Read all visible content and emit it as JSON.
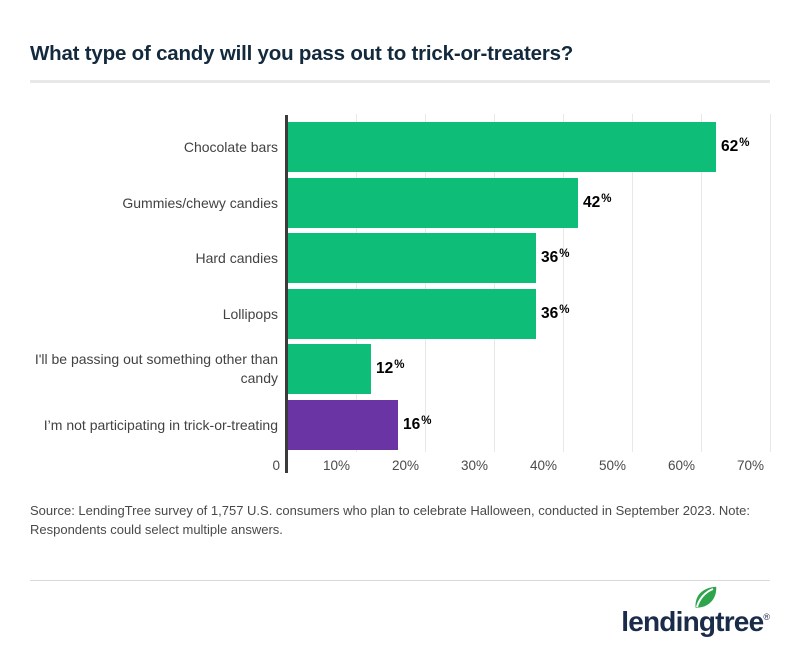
{
  "title": "What type of candy will you pass out to trick-or-treaters?",
  "source_note": "Source: LendingTree survey of 1,757 U.S. consumers who plan to celebrate Halloween, conducted in September 2023. Note: Respondents could select multiple answers.",
  "logo": {
    "text": "lendingtree",
    "registered_mark": "®"
  },
  "colors": {
    "bar_green": "#0dbd78",
    "bar_purple": "#6a34a4",
    "title_navy": "#13293d",
    "category_label_gray": "#424242",
    "tick_gray": "#4a4a4a",
    "gridline_gray": "#e8e8e8",
    "axis_line_dark": "#3b3b3b",
    "value_label_black": "#000000",
    "logo_navy": "#1b2b4a",
    "leaf_green": "#2ea44d"
  },
  "chart_data": {
    "type": "bar",
    "orientation": "horizontal",
    "title": "What type of candy will you pass out to trick-or-treaters?",
    "categories": [
      "Chocolate bars",
      "Gummies/chewy candies",
      "Hard candies",
      "Lollipops",
      "I'll be passing out something other than candy",
      "I’m not participating in trick-or-treating"
    ],
    "category_lines": [
      [
        "Chocolate bars"
      ],
      [
        "Gummies/chewy candies"
      ],
      [
        "Hard candies"
      ],
      [
        "Lollipops"
      ],
      [
        "I'll be passing out something other than",
        "candy"
      ],
      [
        "I’m not participating in trick-or-treating"
      ]
    ],
    "values": [
      62,
      42,
      36,
      36,
      12,
      16
    ],
    "value_labels": [
      "62%",
      "42%",
      "36%",
      "36%",
      "12%",
      "16%"
    ],
    "bar_colors": [
      "#0dbd78",
      "#0dbd78",
      "#0dbd78",
      "#0dbd78",
      "#0dbd78",
      "#6a34a4"
    ],
    "x_axis": {
      "min": 0,
      "max": 70,
      "ticks": [
        0,
        10,
        20,
        30,
        40,
        50,
        60,
        70
      ],
      "tick_labels": [
        "0",
        "10%",
        "20%",
        "30%",
        "40%",
        "50%",
        "60%",
        "70%"
      ]
    },
    "grid": "vertical",
    "legend": "none",
    "xlabel": "",
    "ylabel": ""
  }
}
